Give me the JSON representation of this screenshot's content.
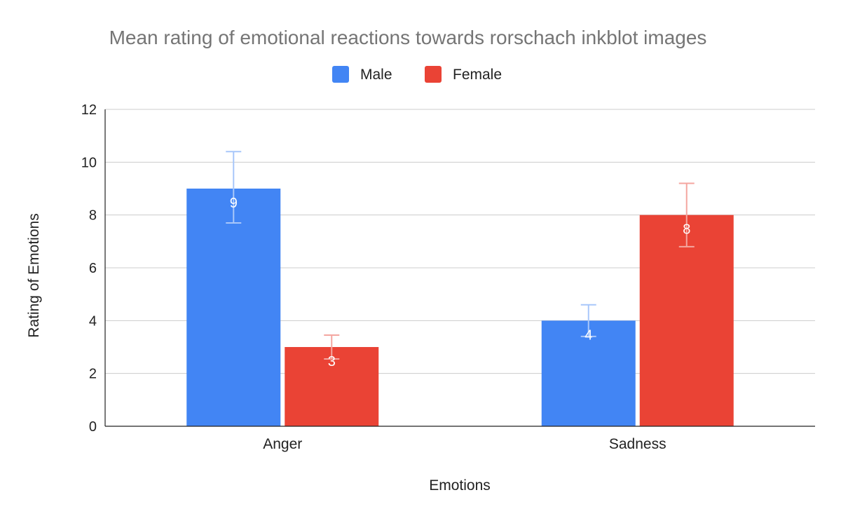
{
  "chart_data": {
    "type": "bar",
    "title": "Mean rating of emotional reactions towards rorschach inkblot images",
    "xlabel": "Emotions",
    "ylabel": "Rating of Emotions",
    "categories": [
      "Anger",
      "Sadness"
    ],
    "series": [
      {
        "name": "Male",
        "color": "#4285f4",
        "error_color": "#a8c7fa",
        "values": [
          9,
          4
        ],
        "error_low": [
          7.7,
          3.4
        ],
        "error_high": [
          10.4,
          4.6
        ]
      },
      {
        "name": "Female",
        "color": "#ea4335",
        "error_color": "#f4a6a0",
        "values": [
          3,
          8
        ],
        "error_low": [
          2.55,
          6.8
        ],
        "error_high": [
          3.45,
          9.2
        ]
      }
    ],
    "ylim": [
      0,
      12
    ],
    "yticks": [
      0,
      2,
      4,
      6,
      8,
      10,
      12
    ],
    "grid": true,
    "legend_position": "top",
    "data_labels": true
  }
}
